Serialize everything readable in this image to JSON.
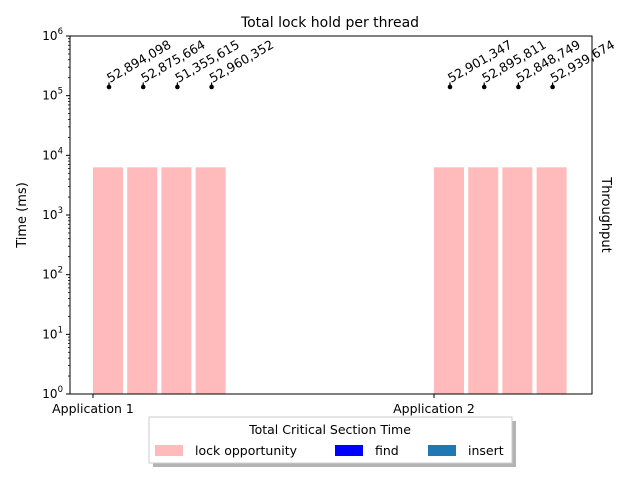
{
  "chart_data": {
    "type": "bar",
    "title": "Total lock hold per thread",
    "ylabel": "Time (ms)",
    "y2label": "Throughput",
    "yscale": "log",
    "ylim": [
      1,
      1000000
    ],
    "y_ticks": [
      1,
      10,
      100,
      1000,
      10000,
      100000,
      1000000
    ],
    "y_tick_labels": [
      {
        "base": "10",
        "exp": "0"
      },
      {
        "base": "10",
        "exp": "1"
      },
      {
        "base": "10",
        "exp": "2"
      },
      {
        "base": "10",
        "exp": "3"
      },
      {
        "base": "10",
        "exp": "4"
      },
      {
        "base": "10",
        "exp": "5"
      },
      {
        "base": "10",
        "exp": "6"
      }
    ],
    "categories": [
      "Application 1",
      "Application 2"
    ],
    "bars_per_category": 4,
    "series": [
      {
        "name": "lock opportunity",
        "color": "#ffbbbb",
        "values": [
          [
            6300,
            6300,
            6300,
            6300
          ],
          [
            6300,
            6300,
            6300,
            6300
          ]
        ]
      },
      {
        "name": "find",
        "color": "#0000ff",
        "values": [
          [
            0,
            0,
            0,
            0
          ],
          [
            0,
            0,
            0,
            0
          ]
        ]
      },
      {
        "name": "insert",
        "color": "#1f77b4",
        "values": [
          [
            0,
            0,
            0,
            0
          ],
          [
            0,
            0,
            0,
            0
          ]
        ]
      }
    ],
    "throughput_markers": {
      "color": "#000000",
      "y_value": 140000,
      "labels": [
        [
          "52,894,098",
          "52,875,664",
          "51,355,615",
          "52,960,352"
        ],
        [
          "52,901,347",
          "52,895,811",
          "52,848,749",
          "52,939,674"
        ]
      ]
    },
    "legend": {
      "title": "Total Critical Section Time",
      "placement": "bottom-center",
      "entries": [
        "lock opportunity",
        "find",
        "insert"
      ]
    },
    "grid": false
  }
}
